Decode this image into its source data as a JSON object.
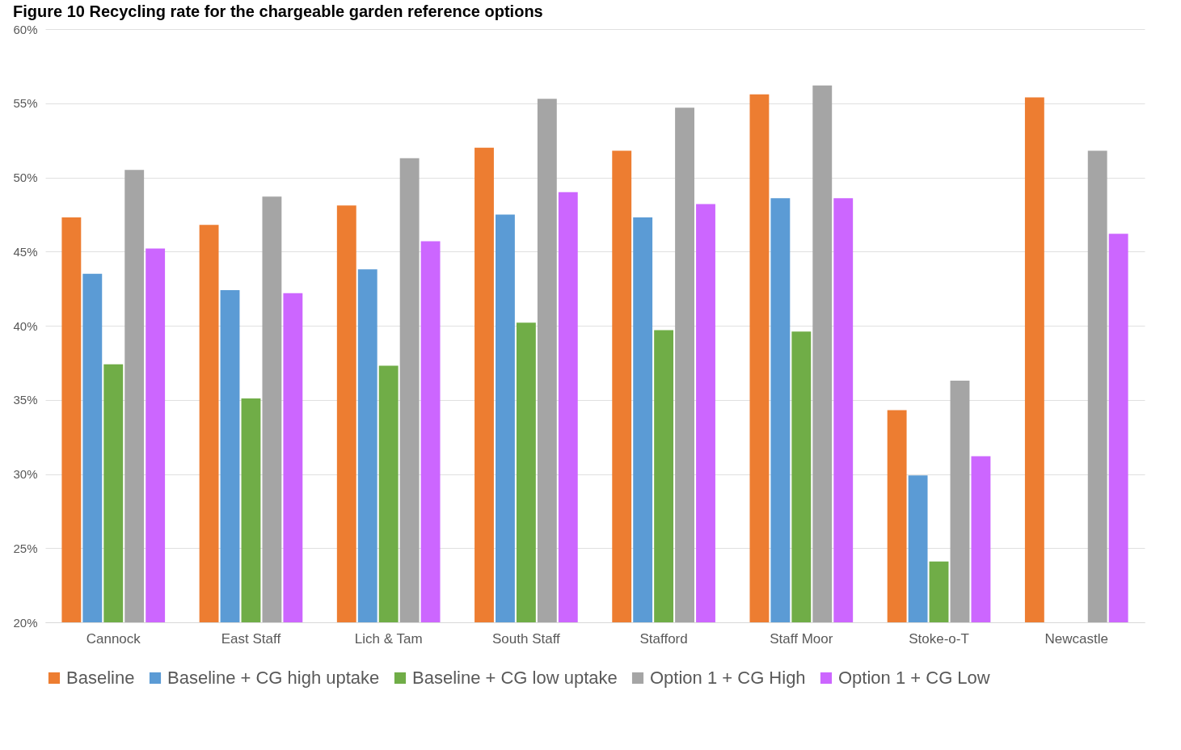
{
  "chart_data": {
    "type": "bar",
    "title": "Figure 10 Recycling rate for the chargeable garden reference options",
    "categories": [
      "Cannock",
      "East Staff",
      "Lich & Tam",
      "South Staff",
      "Stafford",
      "Staff Moor",
      "Stoke-o-T",
      "Newcastle"
    ],
    "series": [
      {
        "name": "Baseline",
        "color": "#ed7d31",
        "values": [
          47.3,
          46.8,
          48.1,
          52.0,
          51.8,
          55.6,
          34.3,
          55.4
        ]
      },
      {
        "name": "Baseline + CG high uptake",
        "color": "#5b9bd5",
        "values": [
          43.5,
          42.4,
          43.8,
          47.5,
          47.3,
          48.6,
          29.9,
          null
        ]
      },
      {
        "name": "Baseline + CG low uptake",
        "color": "#70ad47",
        "values": [
          37.4,
          35.1,
          37.3,
          40.2,
          39.7,
          39.6,
          24.1,
          null
        ]
      },
      {
        "name": "Option 1 + CG High",
        "color": "#a5a5a5",
        "values": [
          50.5,
          48.7,
          51.3,
          55.3,
          54.7,
          56.2,
          36.3,
          51.8
        ]
      },
      {
        "name": "Option 1 + CG Low",
        "color": "#cc66ff",
        "values": [
          45.2,
          42.2,
          45.7,
          49.0,
          48.2,
          48.6,
          31.2,
          46.2
        ]
      }
    ],
    "ylim": [
      20,
      60
    ],
    "yticks": [
      {
        "value": 20,
        "label": "20%"
      },
      {
        "value": 25,
        "label": "25%"
      },
      {
        "value": 30,
        "label": "30%"
      },
      {
        "value": 35,
        "label": "35%"
      },
      {
        "value": 40,
        "label": "40%"
      },
      {
        "value": 45,
        "label": "45%"
      },
      {
        "value": 50,
        "label": "50%"
      },
      {
        "value": 55,
        "label": "55%"
      },
      {
        "value": 60,
        "label": "60%"
      }
    ],
    "grid": "y",
    "legend": "bottom"
  }
}
